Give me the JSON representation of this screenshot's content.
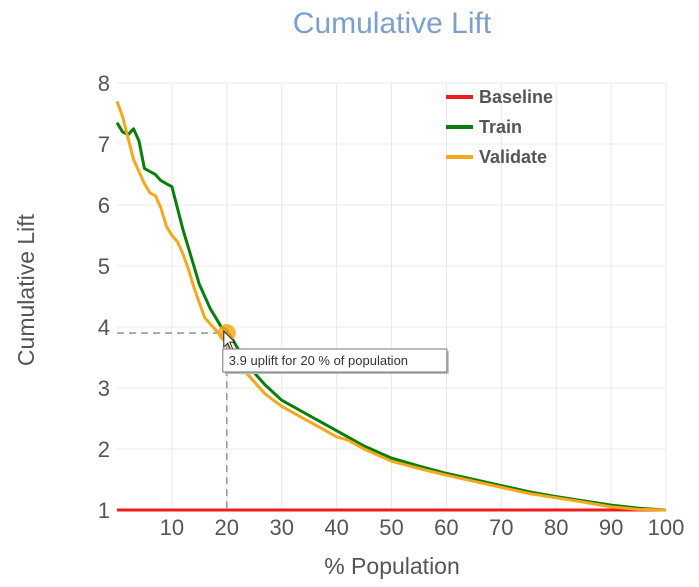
{
  "chart_data": {
    "type": "line",
    "title": "Cumulative Lift",
    "xlabel": "% Population",
    "ylabel": "Cumulative Lift",
    "xlim": [
      0,
      100
    ],
    "ylim": [
      1,
      8
    ],
    "x_ticks": [
      10,
      20,
      30,
      40,
      50,
      60,
      70,
      80,
      90,
      100
    ],
    "y_ticks": [
      1,
      2,
      3,
      4,
      5,
      6,
      7,
      8
    ],
    "grid": true,
    "legend": "top-right",
    "series": [
      {
        "name": "Baseline",
        "color": "#ee1c1c",
        "x": [
          0,
          100
        ],
        "y": [
          1,
          1
        ]
      },
      {
        "name": "Train",
        "color": "#0a7d0a",
        "x": [
          0,
          1,
          2,
          3,
          4,
          5,
          6,
          7,
          8,
          9,
          10,
          11,
          12,
          13,
          14,
          15,
          16,
          17,
          18,
          19,
          20,
          21,
          22,
          23,
          24,
          25,
          27,
          30,
          32,
          35,
          37,
          40,
          42,
          45,
          50,
          55,
          60,
          65,
          70,
          75,
          80,
          85,
          90,
          95,
          100
        ],
        "y": [
          7.35,
          7.2,
          7.15,
          7.25,
          7.05,
          6.6,
          6.55,
          6.5,
          6.4,
          6.35,
          6.3,
          5.95,
          5.6,
          5.3,
          5.0,
          4.7,
          4.5,
          4.3,
          4.15,
          4.0,
          3.95,
          3.8,
          3.65,
          3.5,
          3.35,
          3.25,
          3.05,
          2.8,
          2.7,
          2.55,
          2.45,
          2.3,
          2.2,
          2.05,
          1.85,
          1.72,
          1.6,
          1.5,
          1.4,
          1.3,
          1.22,
          1.15,
          1.08,
          1.03,
          1.0
        ]
      },
      {
        "name": "Validate",
        "color": "#f5a81c",
        "x": [
          0,
          1,
          2,
          3,
          4,
          5,
          6,
          7,
          8,
          9,
          10,
          11,
          12,
          13,
          14,
          15,
          16,
          17,
          18,
          19,
          20,
          21,
          22,
          23,
          24,
          25,
          27,
          30,
          32,
          35,
          37,
          40,
          42,
          45,
          50,
          55,
          60,
          65,
          70,
          75,
          80,
          85,
          90,
          95,
          100
        ],
        "y": [
          7.7,
          7.45,
          7.1,
          6.75,
          6.55,
          6.35,
          6.2,
          6.15,
          5.95,
          5.65,
          5.5,
          5.4,
          5.2,
          4.95,
          4.65,
          4.4,
          4.15,
          4.05,
          3.95,
          3.85,
          3.75,
          3.6,
          3.45,
          3.3,
          3.2,
          3.1,
          2.9,
          2.7,
          2.6,
          2.45,
          2.35,
          2.2,
          2.15,
          2.0,
          1.8,
          1.68,
          1.57,
          1.47,
          1.37,
          1.27,
          1.2,
          1.13,
          1.05,
          1.01,
          1.0
        ]
      }
    ],
    "annotation": {
      "text": "3.9 uplift for 20 % of population",
      "x": 20,
      "y": 3.9
    }
  }
}
